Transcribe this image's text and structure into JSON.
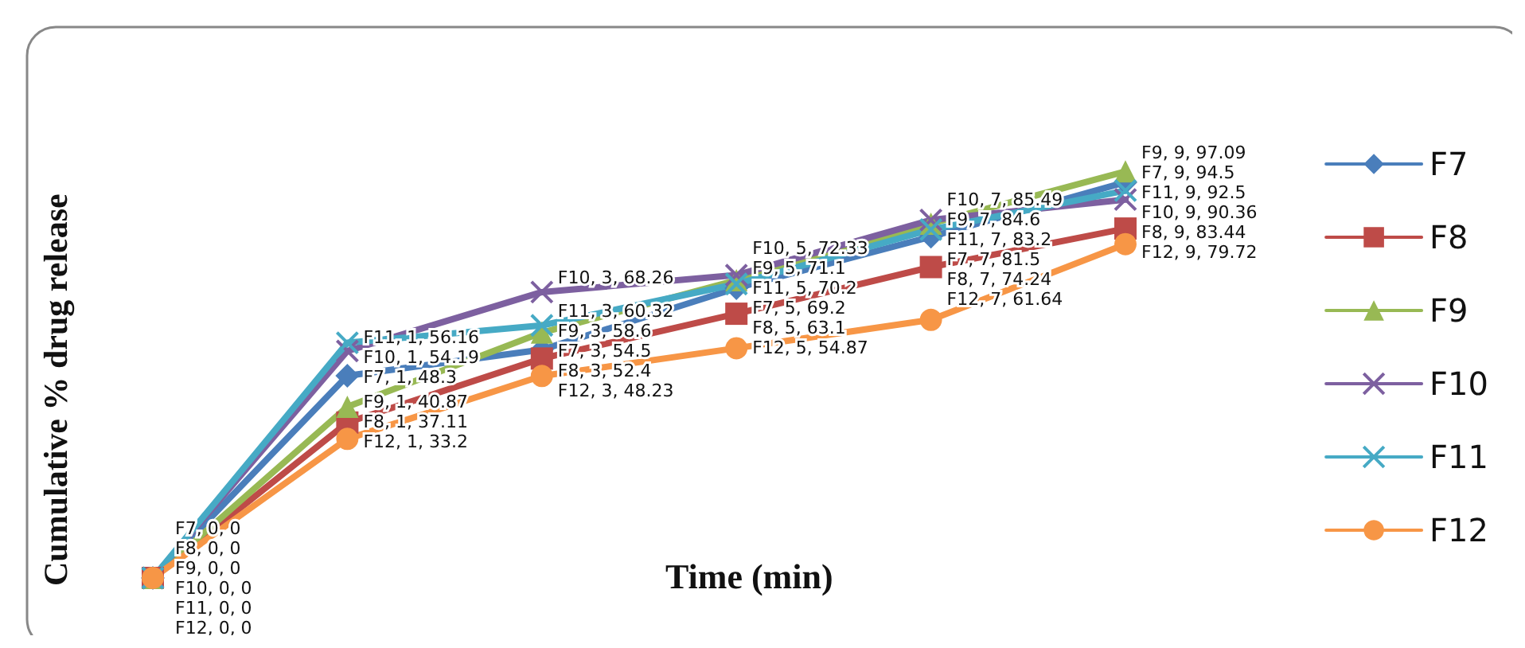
{
  "chart_data": {
    "type": "line",
    "xlabel": "Time (min)",
    "ylabel": "Cumulative % drug release",
    "categories": [
      null,
      null,
      null,
      null,
      null,
      null
    ],
    "tick_labels": false,
    "legend": "right",
    "series": [
      {
        "name": "F7",
        "color": "#4a7ebb",
        "marker": "diamond",
        "values": [
          0,
          48.3,
          54.5,
          69.2,
          81.5,
          94.5
        ],
        "value_labels": [
          "F7, 0, 0",
          "F7, 1, 48.3",
          "F7, 3, 54.5",
          "F7, 5, 69.2",
          "F7, 7, 81.5",
          "F7, 9, 94.5"
        ]
      },
      {
        "name": "F8",
        "color": "#be4b48",
        "marker": "square",
        "values": [
          0,
          37.11,
          52.4,
          63.1,
          74.24,
          83.44
        ],
        "value_labels": [
          "F8, 0, 0",
          "F8, 1, 37.11",
          "F8, 3, 52.4",
          "F8, 5, 63.1",
          "F8, 7, 74.24",
          "F8, 9, 83.44"
        ]
      },
      {
        "name": "F9",
        "color": "#98b954",
        "marker": "triangle",
        "values": [
          0,
          40.87,
          58.6,
          71.1,
          84.6,
          97.09
        ],
        "value_labels": [
          "F9, 0, 0",
          "F9, 1, 40.87",
          "F9, 3, 58.6",
          "F9, 5, 71.1",
          "F9, 7, 84.6",
          "F9, 9, 97.09"
        ]
      },
      {
        "name": "F10",
        "color": "#7d60a0",
        "marker": "cross",
        "values": [
          0,
          54.19,
          68.26,
          72.33,
          85.49,
          90.36
        ],
        "value_labels": [
          "F10, 0, 0",
          "F10, 1, 54.19",
          "F10, 3, 68.26",
          "F10, 5, 72.33",
          "F10, 7, 85.49",
          "F10, 9, 90.36"
        ]
      },
      {
        "name": "F11",
        "color": "#46aac5",
        "marker": "cross",
        "values": [
          0,
          56.16,
          60.32,
          70.2,
          83.2,
          92.5
        ],
        "value_labels": [
          "F11, 0, 0",
          "F11, 1, 56.16",
          "F11, 3, 60.32",
          "F11, 5, 70.2",
          "F11, 7, 83.2",
          "F11, 9, 92.5"
        ]
      },
      {
        "name": "F12",
        "color": "#f79646",
        "marker": "circle",
        "values": [
          0,
          33.2,
          48.23,
          54.87,
          61.64,
          79.72
        ],
        "value_labels": [
          "F12, 0, 0",
          "F12, 1, 33.2",
          "F12, 3, 48.23",
          "F12, 5, 54.87",
          "F12, 7, 61.64",
          "F12, 9, 79.72"
        ]
      }
    ]
  }
}
